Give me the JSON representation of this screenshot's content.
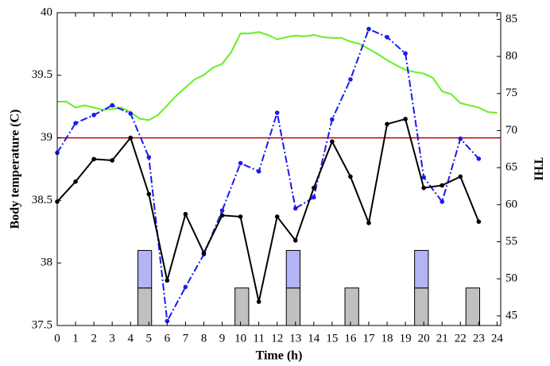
{
  "chart_data": {
    "type": "line",
    "xlabel": "Time (h)",
    "ylabel": "Body temperature (C)",
    "y2label": "THI",
    "xlim": [
      0,
      24.2
    ],
    "xticks": [
      0,
      1,
      2,
      3,
      4,
      5,
      6,
      7,
      8,
      9,
      10,
      11,
      12,
      13,
      14,
      15,
      16,
      17,
      18,
      19,
      20,
      21,
      22,
      23,
      24
    ],
    "ylim": [
      37.5,
      40
    ],
    "yticks": [
      37.5,
      38,
      38.5,
      39,
      39.5,
      40
    ],
    "y2lim": [
      43.7,
      85.9
    ],
    "y2ticks": [
      45,
      50,
      55,
      60,
      65,
      70,
      75,
      80,
      85
    ],
    "ranges": [
      {
        "x": [
          4.4,
          5.15
        ],
        "y": [
          37.5,
          37.8
        ],
        "color": "#c0c0c0"
      },
      {
        "x": [
          4.4,
          5.15
        ],
        "y": [
          37.8,
          38.1
        ],
        "color": "#b3b3f5"
      },
      {
        "x": [
          9.7,
          10.45
        ],
        "y": [
          37.5,
          37.8
        ],
        "color": "#c0c0c0"
      },
      {
        "x": [
          12.5,
          13.25
        ],
        "y": [
          37.5,
          37.8
        ],
        "color": "#c0c0c0"
      },
      {
        "x": [
          12.5,
          13.25
        ],
        "y": [
          37.8,
          38.1
        ],
        "color": "#b3b3f5"
      },
      {
        "x": [
          15.7,
          16.45
        ],
        "y": [
          37.5,
          37.8
        ],
        "color": "#c0c0c0"
      },
      {
        "x": [
          19.5,
          20.25
        ],
        "y": [
          37.5,
          37.8
        ],
        "color": "#c0c0c0"
      },
      {
        "x": [
          19.5,
          20.25
        ],
        "y": [
          37.8,
          38.1
        ],
        "color": "#b3b3f5"
      },
      {
        "x": [
          22.3,
          23.05
        ],
        "y": [
          37.5,
          37.8
        ],
        "color": "#c0c0c0"
      }
    ],
    "hlines": [
      {
        "value": 39,
        "color": "#c00000"
      }
    ],
    "series": [
      {
        "color": "#66ee22",
        "axis": "y2",
        "dash": "solid",
        "marker": false,
        "x": [
          0,
          0.5,
          1,
          1.5,
          2,
          2.5,
          3,
          3.5,
          4,
          4.5,
          5,
          5.5,
          6,
          6.5,
          7,
          7.5,
          8,
          8.5,
          9,
          9.5,
          10,
          10.5,
          11,
          11.5,
          12,
          12.5,
          13,
          13.5,
          14,
          14.5,
          15,
          15.5,
          16,
          16.5,
          17,
          17.5,
          18,
          18.5,
          19,
          19.5,
          20,
          20.5,
          21,
          21.5,
          22,
          22.5,
          23,
          23.5,
          24
        ],
        "values": [
          73.9,
          73.9,
          73.1,
          73.4,
          73.1,
          72.8,
          72.9,
          73.1,
          72.5,
          71.6,
          71.4,
          72.1,
          73.4,
          74.7,
          75.8,
          76.9,
          77.5,
          78.5,
          79.0,
          80.6,
          83.1,
          83.1,
          83.3,
          82.9,
          82.3,
          82.6,
          82.8,
          82.7,
          82.9,
          82.6,
          82.5,
          82.5,
          82.0,
          81.7,
          81.0,
          80.3,
          79.5,
          78.8,
          78.2,
          77.9,
          77.7,
          77.1,
          75.3,
          74.9,
          73.7,
          73.4,
          73.1,
          72.5,
          72.4
        ]
      },
      {
        "color": "#1a1aee",
        "axis": "y2",
        "dash": "dashdot",
        "marker": true,
        "x": [
          0,
          1,
          2,
          3,
          4,
          5,
          6,
          7,
          8,
          9,
          10,
          11,
          12,
          13,
          14,
          15,
          16,
          17,
          18,
          19,
          20,
          21,
          22,
          23
        ],
        "values": [
          67.0,
          71.0,
          72.1,
          73.4,
          72.3,
          66.4,
          44.3,
          48.9,
          53.3,
          59.2,
          65.6,
          64.5,
          72.4,
          59.5,
          61.0,
          71.5,
          76.9,
          83.7,
          82.6,
          80.4,
          63.7,
          60.4,
          68.9,
          66.2
        ]
      },
      {
        "color": "#000000",
        "axis": "y",
        "dash": "solid",
        "marker": true,
        "x": [
          0,
          1,
          2,
          3,
          4,
          5,
          6,
          7,
          8,
          9,
          10,
          11,
          12,
          13,
          14,
          15,
          16,
          17,
          18,
          19,
          20,
          21,
          22,
          23
        ],
        "values": [
          38.49,
          38.65,
          38.83,
          38.82,
          39.0,
          38.55,
          37.86,
          38.39,
          38.08,
          38.38,
          38.37,
          37.69,
          38.37,
          38.18,
          38.6,
          38.97,
          38.69,
          38.32,
          39.11,
          39.15,
          38.6,
          38.62,
          38.69,
          38.33
        ]
      }
    ]
  }
}
